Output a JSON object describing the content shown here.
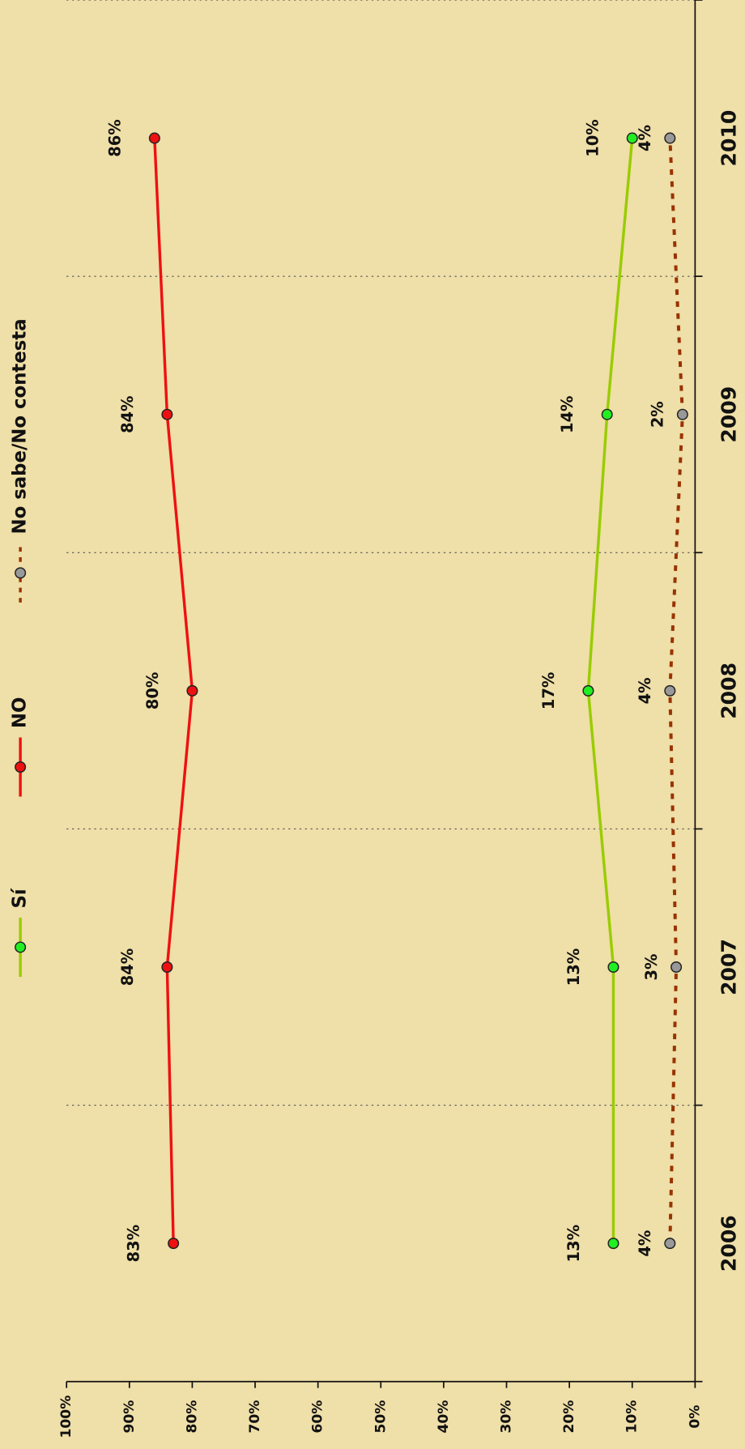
{
  "chart_data": {
    "type": "line",
    "categories": [
      "2006",
      "2007",
      "2008",
      "2009",
      "2010"
    ],
    "series": [
      {
        "name": "Sí",
        "color": "#99cc00",
        "marker_color": "#22ee22",
        "values": [
          13,
          13,
          17,
          14,
          10
        ],
        "value_labels": [
          "13%",
          "13%",
          "17%",
          "14%",
          "10%"
        ]
      },
      {
        "name": "NO",
        "color": "#ee1111",
        "marker_color": "#ee1111",
        "values": [
          83,
          84,
          80,
          84,
          86
        ],
        "value_labels": [
          "83%",
          "84%",
          "80%",
          "84%",
          "86%"
        ]
      },
      {
        "name": "No sabe/No contesta",
        "color": "#993300",
        "marker_color": "#999999",
        "dashed": true,
        "values": [
          4,
          3,
          4,
          2,
          4
        ],
        "value_labels": [
          "4%",
          "3%",
          "4%",
          "2%",
          "4%"
        ]
      }
    ],
    "ylim": [
      0,
      100
    ],
    "yticks": [
      {
        "value": 0,
        "label": "0%"
      },
      {
        "value": 10,
        "label": "10%"
      },
      {
        "value": 20,
        "label": "20%"
      },
      {
        "value": 30,
        "label": "30%"
      },
      {
        "value": 40,
        "label": "40%"
      },
      {
        "value": 50,
        "label": "50%"
      },
      {
        "value": 60,
        "label": "60%"
      },
      {
        "value": 70,
        "label": "70%"
      },
      {
        "value": 80,
        "label": "80%"
      },
      {
        "value": 90,
        "label": "90%"
      },
      {
        "value": 100,
        "label": "100%"
      }
    ],
    "grid": true
  }
}
